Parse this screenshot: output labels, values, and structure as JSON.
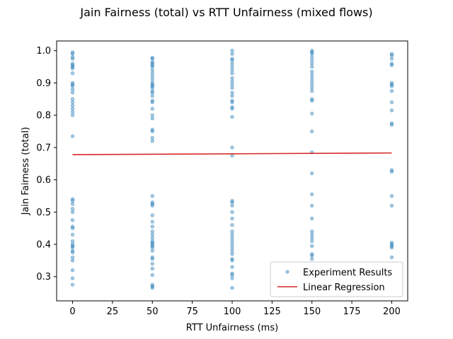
{
  "chart_data": {
    "type": "scatter",
    "title": "Jain Fairness (total) vs RTT Unfairness (mixed flows)",
    "xlabel": "RTT Unfairness (ms)",
    "ylabel": "Jain Fairness (total)",
    "xlim": [
      -10,
      210
    ],
    "ylim": [
      0.225,
      1.03
    ],
    "xticks": [
      0,
      25,
      50,
      75,
      100,
      125,
      150,
      175,
      200
    ],
    "yticks": [
      0.3,
      0.4,
      0.5,
      0.6,
      0.7,
      0.8,
      0.9,
      1.0
    ],
    "grid": false,
    "legend_position": "lower-right",
    "colors": {
      "points": "#1f77b4",
      "regression": "#d62728"
    },
    "series": [
      {
        "name": "Experiment Results",
        "kind": "points",
        "groups": [
          {
            "x": 0,
            "y": [
              0.995,
              0.99,
              0.98,
              0.975,
              0.96,
              0.955,
              0.95,
              0.945,
              0.93,
              0.9,
              0.895,
              0.89,
              0.88,
              0.87,
              0.85,
              0.84,
              0.83,
              0.82,
              0.81,
              0.8,
              0.735,
              0.54,
              0.535,
              0.525,
              0.51,
              0.5,
              0.475,
              0.455,
              0.45,
              0.43,
              0.41,
              0.4,
              0.395,
              0.39,
              0.38,
              0.375,
              0.36,
              0.35,
              0.32,
              0.295,
              0.275
            ]
          },
          {
            "x": 50,
            "y": [
              0.978,
              0.975,
              0.965,
              0.96,
              0.955,
              0.95,
              0.94,
              0.93,
              0.92,
              0.91,
              0.9,
              0.895,
              0.89,
              0.885,
              0.875,
              0.87,
              0.86,
              0.845,
              0.84,
              0.82,
              0.8,
              0.79,
              0.755,
              0.75,
              0.73,
              0.72,
              0.55,
              0.53,
              0.525,
              0.52,
              0.49,
              0.47,
              0.455,
              0.44,
              0.43,
              0.42,
              0.41,
              0.405,
              0.4,
              0.395,
              0.39,
              0.38,
              0.36,
              0.355,
              0.34,
              0.325,
              0.305,
              0.275,
              0.27,
              0.265
            ]
          },
          {
            "x": 100,
            "y": [
              1.0,
              0.99,
              0.975,
              0.97,
              0.96,
              0.95,
              0.94,
              0.93,
              0.915,
              0.905,
              0.895,
              0.885,
              0.87,
              0.86,
              0.845,
              0.84,
              0.825,
              0.82,
              0.795,
              0.7,
              0.675,
              0.535,
              0.53,
              0.52,
              0.5,
              0.48,
              0.46,
              0.44,
              0.43,
              0.42,
              0.41,
              0.4,
              0.39,
              0.38,
              0.37,
              0.355,
              0.35,
              0.33,
              0.31,
              0.305,
              0.295,
              0.265
            ]
          },
          {
            "x": 150,
            "y": [
              1.0,
              0.995,
              0.99,
              0.98,
              0.97,
              0.96,
              0.95,
              0.935,
              0.925,
              0.915,
              0.905,
              0.895,
              0.885,
              0.875,
              0.85,
              0.845,
              0.805,
              0.75,
              0.685,
              0.62,
              0.555,
              0.52,
              0.48,
              0.44,
              0.43,
              0.42,
              0.41,
              0.395,
              0.37,
              0.365,
              0.355
            ]
          },
          {
            "x": 200,
            "y": [
              0.99,
              0.985,
              0.975,
              0.96,
              0.955,
              0.9,
              0.895,
              0.89,
              0.875,
              0.84,
              0.815,
              0.775,
              0.77,
              0.63,
              0.625,
              0.55,
              0.52,
              0.405,
              0.4,
              0.395,
              0.39,
              0.36
            ]
          }
        ]
      },
      {
        "name": "Linear Regression",
        "kind": "line",
        "x": [
          0,
          200
        ],
        "y": [
          0.678,
          0.683
        ]
      }
    ]
  }
}
